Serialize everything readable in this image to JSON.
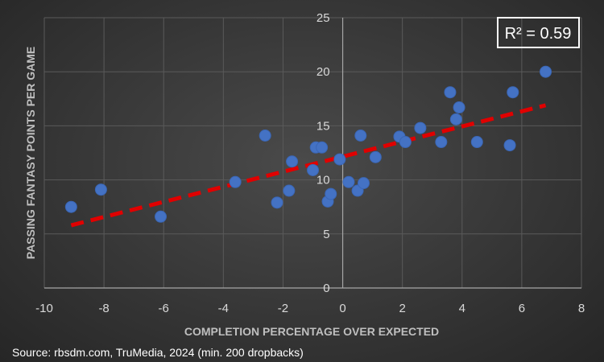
{
  "chart_data": {
    "type": "scatter",
    "xlabel": "COMPLETION PERCENTAGE OVER EXPECTED",
    "ylabel": "PASSING FANTASY POINTS PER GAME",
    "xlim": [
      -10,
      8
    ],
    "ylim": [
      0,
      25
    ],
    "x_ticks": [
      "-10",
      "-8",
      "-6",
      "-4",
      "-2",
      "0",
      "2",
      "4",
      "6",
      "8"
    ],
    "y_ticks": [
      "0",
      "5",
      "10",
      "15",
      "20",
      "25"
    ],
    "grid": true,
    "annotation": "R² = 0.59",
    "source": "Source: rbsdm.com, TruMedia, 2024 (min. 200 dropbacks)",
    "colors": {
      "points": "#4472c4",
      "trendline": "#e00000",
      "grid": "#5a5a5a",
      "text": "#d9d9d9"
    },
    "trendline": {
      "style": "dashed",
      "x": [
        -9.1,
        6.8
      ],
      "y": [
        5.8,
        16.9
      ]
    },
    "points": [
      {
        "x": -9.1,
        "y": 7.5
      },
      {
        "x": -8.1,
        "y": 9.1
      },
      {
        "x": -6.1,
        "y": 6.6
      },
      {
        "x": -3.6,
        "y": 9.8
      },
      {
        "x": -2.6,
        "y": 14.1
      },
      {
        "x": -2.2,
        "y": 7.9
      },
      {
        "x": -1.8,
        "y": 9.0
      },
      {
        "x": -1.7,
        "y": 11.7
      },
      {
        "x": -1.0,
        "y": 10.9
      },
      {
        "x": -0.9,
        "y": 13.0
      },
      {
        "x": -0.7,
        "y": 13.0
      },
      {
        "x": -0.5,
        "y": 8.0
      },
      {
        "x": -0.4,
        "y": 8.7
      },
      {
        "x": -0.1,
        "y": 11.9
      },
      {
        "x": 0.2,
        "y": 9.8
      },
      {
        "x": 0.5,
        "y": 9.0
      },
      {
        "x": 0.6,
        "y": 14.1
      },
      {
        "x": 0.7,
        "y": 9.7
      },
      {
        "x": 1.1,
        "y": 12.1
      },
      {
        "x": 1.9,
        "y": 14.0
      },
      {
        "x": 2.1,
        "y": 13.5
      },
      {
        "x": 2.6,
        "y": 14.8
      },
      {
        "x": 3.3,
        "y": 13.5
      },
      {
        "x": 3.6,
        "y": 18.1
      },
      {
        "x": 3.8,
        "y": 15.6
      },
      {
        "x": 3.9,
        "y": 16.7
      },
      {
        "x": 4.5,
        "y": 13.5
      },
      {
        "x": 5.6,
        "y": 13.2
      },
      {
        "x": 5.7,
        "y": 18.1
      },
      {
        "x": 6.8,
        "y": 20.0
      }
    ]
  }
}
